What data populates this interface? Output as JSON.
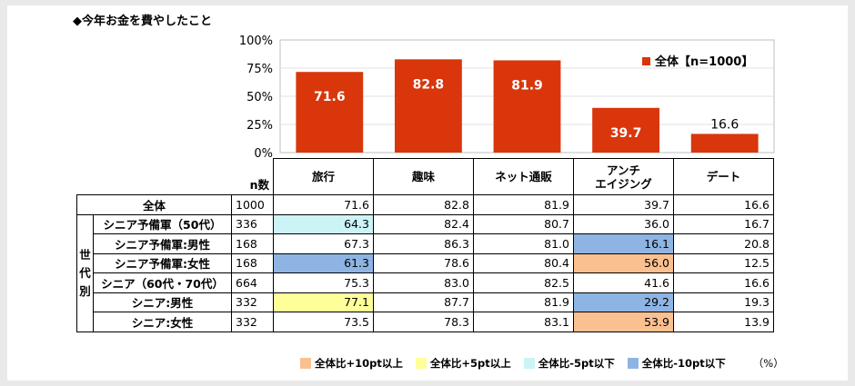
{
  "title": "◆今年お金を費やしたこと",
  "colors": {
    "bar": "#d9360c",
    "orange": "#fac090",
    "yellow": "#ffff99",
    "lightcyan": "#ccf4f7",
    "blue": "#8eb4e3"
  },
  "chart_data": {
    "type": "bar",
    "categories": [
      "旅行",
      "趣味",
      "ネット通販",
      "アンチエイジング",
      "デート"
    ],
    "series": [
      {
        "name": "全体【n=1000】",
        "values": [
          71.6,
          82.8,
          81.9,
          39.7,
          16.6
        ]
      }
    ],
    "ylim": [
      0,
      100
    ],
    "yticks": [
      "0%",
      "25%",
      "50%",
      "75%",
      "100%"
    ],
    "legend_position": "top-right"
  },
  "table": {
    "n_header": "n数",
    "headers": [
      "旅行",
      "趣味",
      "ネット通販",
      "アンチ\nエイジング",
      "デート"
    ],
    "group_label": "世\n代\n別",
    "total": {
      "label": "全体",
      "n": "1000",
      "values": [
        "71.6",
        "82.8",
        "81.9",
        "39.7",
        "16.6"
      ]
    },
    "rows": [
      {
        "label": "シニア予備軍（50代）",
        "n": "336",
        "values": [
          "64.3",
          "82.4",
          "80.7",
          "36.0",
          "16.7"
        ],
        "hl": [
          "lc",
          "",
          "",
          "",
          ""
        ]
      },
      {
        "label": "シニア予備軍:男性",
        "n": "168",
        "values": [
          "67.3",
          "86.3",
          "81.0",
          "16.1",
          "20.8"
        ],
        "hl": [
          "",
          "",
          "",
          "b",
          ""
        ]
      },
      {
        "label": "シニア予備軍:女性",
        "n": "168",
        "values": [
          "61.3",
          "78.6",
          "80.4",
          "56.0",
          "12.5"
        ],
        "hl": [
          "b",
          "",
          "",
          "o",
          ""
        ]
      },
      {
        "label": "シニア（60代・70代）",
        "n": "664",
        "values": [
          "75.3",
          "83.0",
          "82.5",
          "41.6",
          "16.6"
        ],
        "hl": [
          "",
          "",
          "",
          "",
          ""
        ]
      },
      {
        "label": "シニア:男性",
        "n": "332",
        "values": [
          "77.1",
          "87.7",
          "81.9",
          "29.2",
          "19.3"
        ],
        "hl": [
          "y",
          "",
          "",
          "b",
          ""
        ]
      },
      {
        "label": "シニア:女性",
        "n": "332",
        "values": [
          "73.5",
          "78.3",
          "83.1",
          "53.9",
          "13.9"
        ],
        "hl": [
          "",
          "",
          "",
          "o",
          ""
        ]
      }
    ]
  },
  "legend": {
    "items": [
      {
        "label": "全体比+10pt以上",
        "color": "#fac090"
      },
      {
        "label": "全体比+5pt以上",
        "color": "#ffff99"
      },
      {
        "label": "全体比-5pt以下",
        "color": "#ccf4f7"
      },
      {
        "label": "全体比-10pt以下",
        "color": "#8eb4e3"
      }
    ],
    "unit": "（%）"
  }
}
